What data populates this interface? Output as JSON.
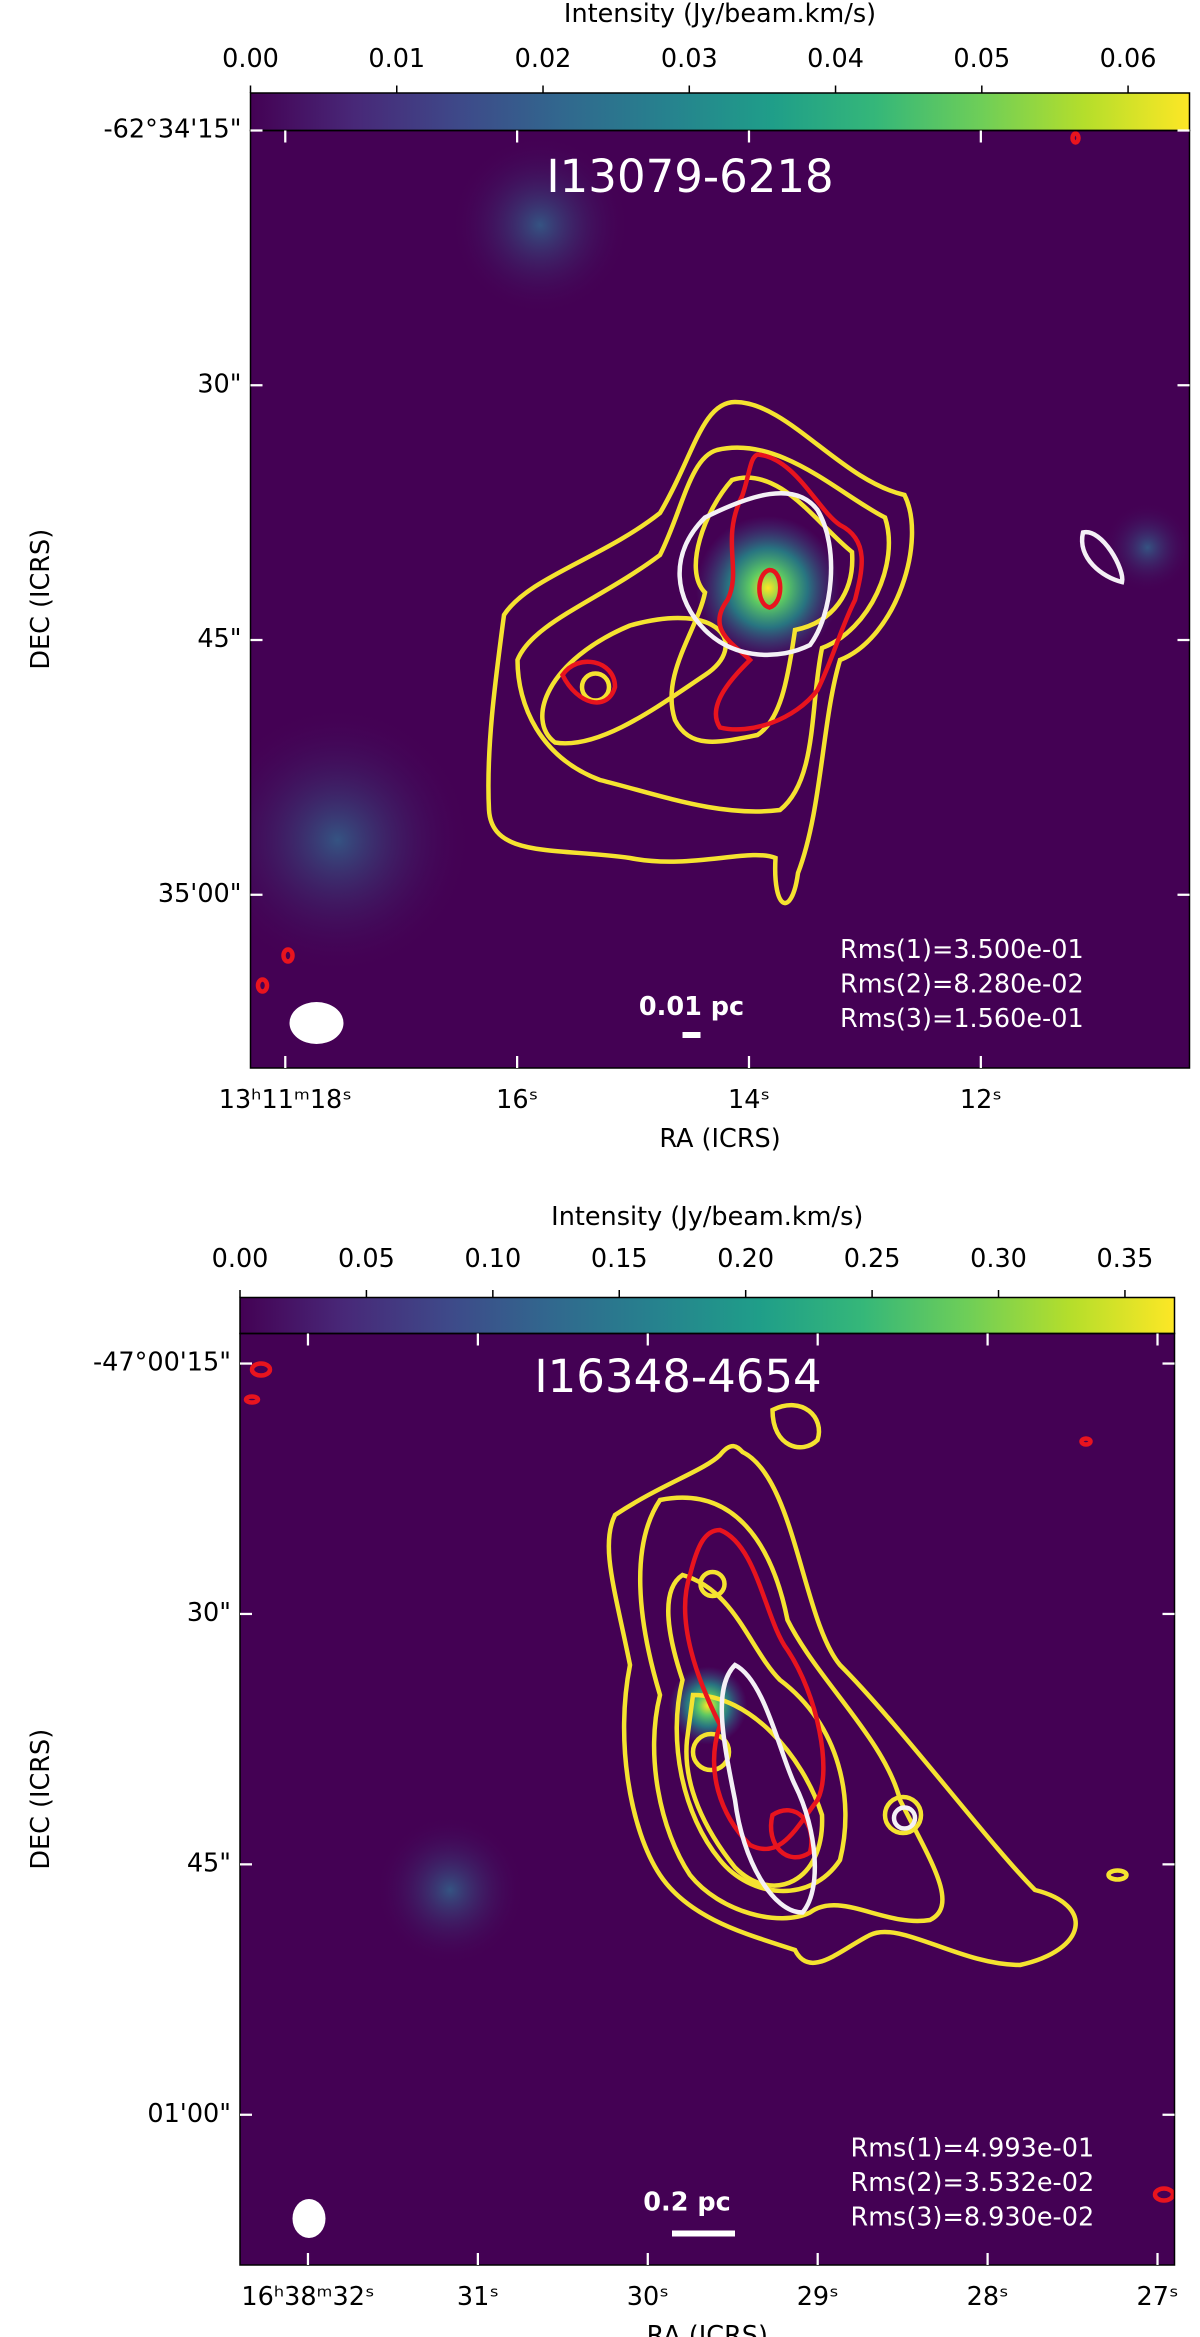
{
  "chart_data": [
    {
      "type": "image",
      "title": "I13079-6218",
      "colormap": "viridis",
      "colorbar_label": "Intensity (Jy/beam.km/s)",
      "clim": [
        0,
        0.0642
      ],
      "cticks": [
        {
          "value": 0,
          "label": "0.00"
        },
        0.01,
        0.02,
        0.03,
        0.04,
        0.05,
        0.06
      ],
      "xlabel": "RA (ICRS)",
      "ylabel": "DEC (ICRS)",
      "xlim": [
        18.3,
        10.2
      ],
      "xticks": [
        {
          "value": 18,
          "label": "13ʰ11ᵐ18ˢ"
        },
        {
          "value": 16,
          "label": "16ˢ"
        },
        {
          "value": 14,
          "label": "14ˢ"
        },
        {
          "value": 12,
          "label": "12ˢ"
        }
      ],
      "ylim": [
        70.2,
        15
      ],
      "yticks": [
        {
          "value": 15,
          "label": "-62°34'15\""
        },
        {
          "value": 30,
          "label": "30\""
        },
        {
          "value": 45,
          "label": "45\""
        },
        {
          "value": 60,
          "label": "35'00\""
        }
      ],
      "scale_bar_label": "0.01 pc",
      "rms_labels": [
        "Rms(1)=3.500e-01",
        "Rms(2)=8.280e-02",
        "Rms(3)=1.560e-01"
      ]
    },
    {
      "type": "image",
      "title": "I16348-4654",
      "colormap": "viridis",
      "colorbar_label": "Intensity (Jy/beam.km/s)",
      "clim": [
        0,
        0.3696
      ],
      "cticks": [
        {
          "value": 0,
          "label": "0.00"
        },
        0.05,
        {
          "value": 0.1,
          "label": "0.10"
        },
        0.15,
        {
          "value": 0.2,
          "label": "0.20"
        },
        0.25,
        {
          "value": 0.3,
          "label": "0.30"
        },
        0.35
      ],
      "xlabel": "RA (ICRS)",
      "ylabel": "DEC (ICRS)",
      "xlim": [
        32.4,
        26.9
      ],
      "xticks": [
        {
          "value": 32,
          "label": "16ʰ38ᵐ32ˢ"
        },
        {
          "value": 31,
          "label": "31ˢ"
        },
        {
          "value": 30,
          "label": "30ˢ"
        },
        {
          "value": 29,
          "label": "29ˢ"
        },
        {
          "value": 28,
          "label": "28ˢ"
        },
        {
          "value": 27,
          "label": "27ˢ"
        }
      ],
      "ylim": [
        69.0,
        13.2
      ],
      "yticks": [
        {
          "value": 15,
          "label": "-47°00'15\""
        },
        {
          "value": 30,
          "label": "30\""
        },
        {
          "value": 45,
          "label": "45\""
        },
        {
          "value": 60,
          "label": "01'00\""
        }
      ],
      "scale_bar_label": "0.2 pc",
      "rms_labels": [
        "Rms(1)=4.993e-01",
        "Rms(2)=3.532e-02",
        "Rms(3)=8.930e-02"
      ]
    }
  ]
}
